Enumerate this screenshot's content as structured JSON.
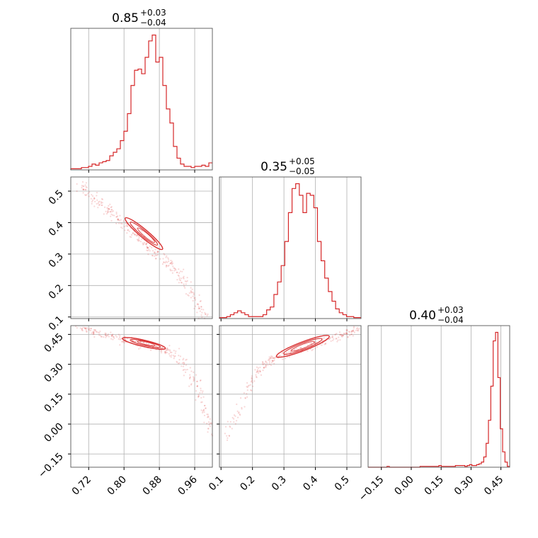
{
  "chart_data": {
    "type": "corner",
    "color": "#d62728",
    "parameters": [
      {
        "median": "0.85",
        "plus": "+0.03",
        "minus": "−0.04",
        "range": [
          0.6795,
          1.0
        ],
        "ticks": [
          0.72,
          0.8,
          0.88,
          0.96
        ],
        "tick_labels": [
          "0.72",
          "0.80",
          "0.88",
          "0.96"
        ]
      },
      {
        "median": "0.35",
        "plus": "+0.05",
        "minus": "−0.05",
        "range": [
          0.095,
          0.545
        ],
        "ticks": [
          0.1,
          0.2,
          0.3,
          0.4,
          0.5
        ],
        "tick_labels": [
          "0.1",
          "0.2",
          "0.3",
          "0.4",
          "0.5"
        ]
      },
      {
        "median": "0.40",
        "plus": "+0.03",
        "minus": "−0.04",
        "range": [
          -0.2165,
          0.494
        ],
        "ticks": [
          -0.15,
          0.0,
          0.15,
          0.3,
          0.45
        ],
        "tick_labels": [
          "−0.15",
          "0.00",
          "0.15",
          "0.30",
          "0.45"
        ]
      }
    ],
    "histograms": [
      {
        "param": 0,
        "counts": [
          1,
          1,
          1,
          2,
          2,
          3,
          5,
          4,
          6,
          7,
          8,
          12,
          15,
          18,
          25,
          33,
          48,
          72,
          85,
          86,
          82,
          96,
          110,
          115,
          92,
          96,
          72,
          52,
          40,
          20,
          10,
          5,
          3,
          3,
          2,
          3,
          3,
          4,
          3,
          6
        ]
      },
      {
        "param": 1,
        "counts": [
          1,
          1,
          2,
          4,
          6,
          8,
          6,
          4,
          2,
          2,
          2,
          2,
          4,
          9,
          12,
          25,
          38,
          55,
          80,
          110,
          135,
          140,
          128,
          110,
          130,
          128,
          115,
          80,
          60,
          42,
          28,
          18,
          10,
          6,
          4,
          2,
          2,
          1,
          1
        ]
      },
      {
        "param": 2,
        "counts": [
          0,
          0,
          0,
          0,
          0,
          0,
          0,
          0,
          1,
          0,
          0,
          0,
          0,
          0,
          0,
          0,
          0,
          0,
          0,
          0,
          0,
          0,
          1,
          1,
          1,
          1,
          1,
          1,
          1,
          1,
          2,
          1,
          1,
          1,
          1,
          1,
          1,
          2,
          2,
          2,
          2,
          1,
          2,
          3,
          2,
          2,
          3,
          4,
          6,
          12,
          28,
          55,
          95,
          148,
          158,
          105,
          45,
          18,
          6,
          1
        ]
      }
    ],
    "grid": true
  }
}
